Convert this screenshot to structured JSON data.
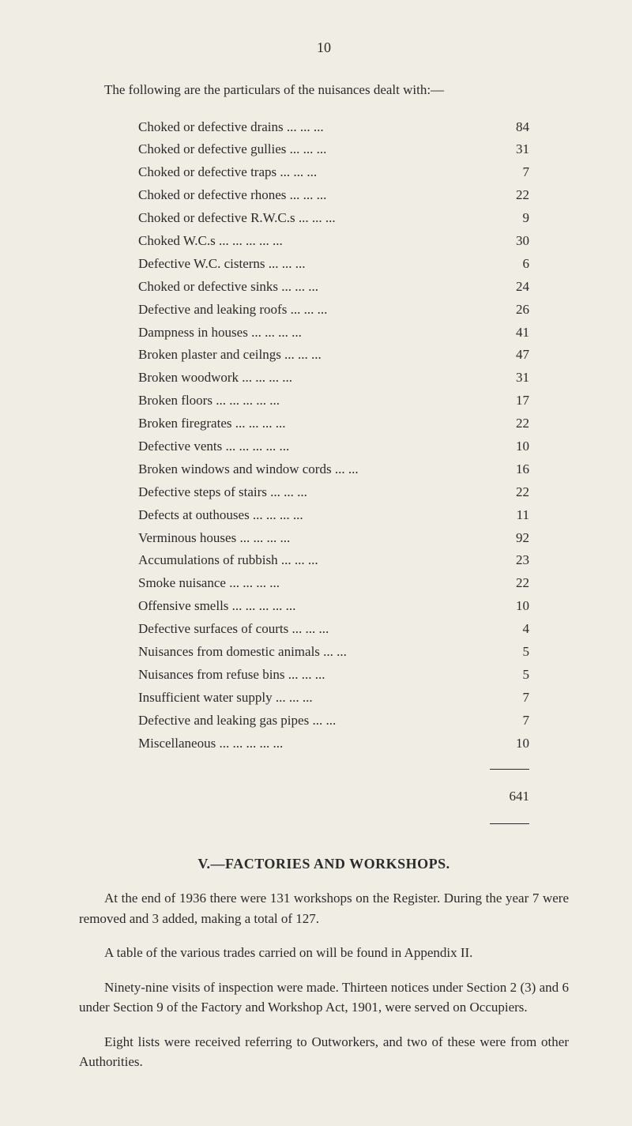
{
  "page_number": "10",
  "intro": "The following are the particulars of the nuisances dealt with:—",
  "items": [
    {
      "label": "Choked or defective drains",
      "dots": "...    ...    ...",
      "value": "84"
    },
    {
      "label": "Choked or defective gullies",
      "dots": "...    ...    ...",
      "value": "31"
    },
    {
      "label": "Choked or defective traps",
      "dots": "...    ...    ...",
      "value": "7"
    },
    {
      "label": "Choked or defective rhones",
      "dots": "...    ...    ...",
      "value": "22"
    },
    {
      "label": "Choked or defective R.W.C.s",
      "dots": "...    ...    ...",
      "value": "9"
    },
    {
      "label": "Choked W.C.s",
      "dots": "...    ...    ...    ...    ...",
      "value": "30"
    },
    {
      "label": "Defective W.C. cisterns",
      "dots": "...    ...    ...",
      "value": "6"
    },
    {
      "label": "Choked or defective sinks",
      "dots": "...    ...    ...",
      "value": "24"
    },
    {
      "label": "Defective and leaking roofs",
      "dots": "...    ...    ...",
      "value": "26"
    },
    {
      "label": "Dampness in houses",
      "dots": "...    ...    ...    ...",
      "value": "41"
    },
    {
      "label": "Broken plaster and ceilngs",
      "dots": "...    ...    ...",
      "value": "47"
    },
    {
      "label": "Broken woodwork",
      "dots": "...    ...    ...    ...",
      "value": "31"
    },
    {
      "label": "Broken floors",
      "dots": "...    ...    ...    ...    ...",
      "value": "17"
    },
    {
      "label": "Broken firegrates",
      "dots": "...    ...    ...    ...",
      "value": "22"
    },
    {
      "label": "Defective vents",
      "dots": "...    ...    ...    ...    ...",
      "value": "10"
    },
    {
      "label": "Broken windows and window cords",
      "dots": "...    ...",
      "value": "16"
    },
    {
      "label": "Defective steps of stairs",
      "dots": "...    ...    ...",
      "value": "22"
    },
    {
      "label": "Defects at outhouses",
      "dots": "...    ...    ...    ...",
      "value": "11"
    },
    {
      "label": "Verminous houses",
      "dots": "...    ...    ...    ...",
      "value": "92"
    },
    {
      "label": "Accumulations of rubbish",
      "dots": "...    ...    ...",
      "value": "23"
    },
    {
      "label": "Smoke nuisance",
      "dots": "...    ...    ...    ...",
      "value": "22"
    },
    {
      "label": "Offensive smells",
      "dots": "...    ...    ...    ...    ...",
      "value": "10"
    },
    {
      "label": "Defective surfaces of courts",
      "dots": "...    ...    ...",
      "value": "4"
    },
    {
      "label": "Nuisances from domestic animals",
      "dots": "...    ...",
      "value": "5"
    },
    {
      "label": "Nuisances from refuse bins",
      "dots": "...    ...    ...",
      "value": "5"
    },
    {
      "label": "Insufficient water supply",
      "dots": "...    ...    ...",
      "value": "7"
    },
    {
      "label": "Defective and leaking gas pipes",
      "dots": "...    ...",
      "value": "7"
    },
    {
      "label": "Miscellaneous",
      "dots": "...    ...    ...    ...    ...",
      "value": "10"
    }
  ],
  "total": "641",
  "section_heading": "V.—FACTORIES AND WORKSHOPS.",
  "paragraphs": [
    "At the end of 1936 there were 131 workshops on the Register. During the year 7 were removed and 3 added, making a total of 127.",
    "A table of the various trades carried on will be found in Appendix II.",
    "Ninety-nine visits of inspection were made. Thirteen notices under Section 2 (3) and 6 under Section 9 of the Factory and Workshop Act, 1901, were served on Occupiers.",
    "Eight lists were received referring to Outworkers, and two of these were from other Authorities."
  ],
  "colors": {
    "background": "#f0ede4",
    "text": "#2a2a2a"
  },
  "typography": {
    "base_fontsize": 17,
    "heading_fontsize": 18,
    "font_family": "Georgia, Times New Roman, serif"
  }
}
